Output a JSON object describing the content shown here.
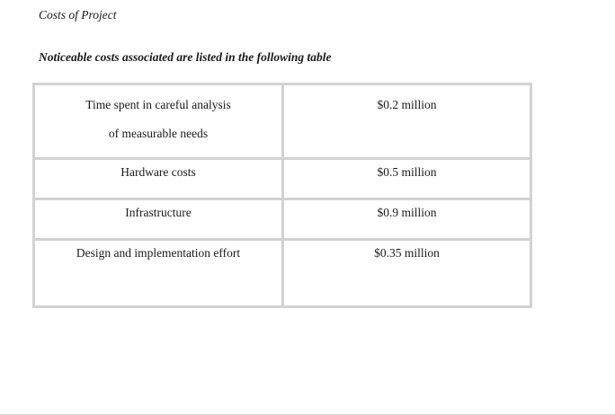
{
  "document": {
    "heading": "Costs of Project",
    "intro": "Noticeable costs associated are listed in the following table"
  },
  "costs_table": {
    "rows": [
      {
        "item_line1": "Time spent in careful analysis",
        "item_line2": "of measurable needs",
        "cost": "$0.2 million"
      },
      {
        "item": "Hardware costs",
        "cost": "$0.5 million"
      },
      {
        "item": "Infrastructure",
        "cost": "$0.9 million"
      },
      {
        "item": "Design and implementation effort",
        "cost": "$0.35 million"
      }
    ]
  }
}
